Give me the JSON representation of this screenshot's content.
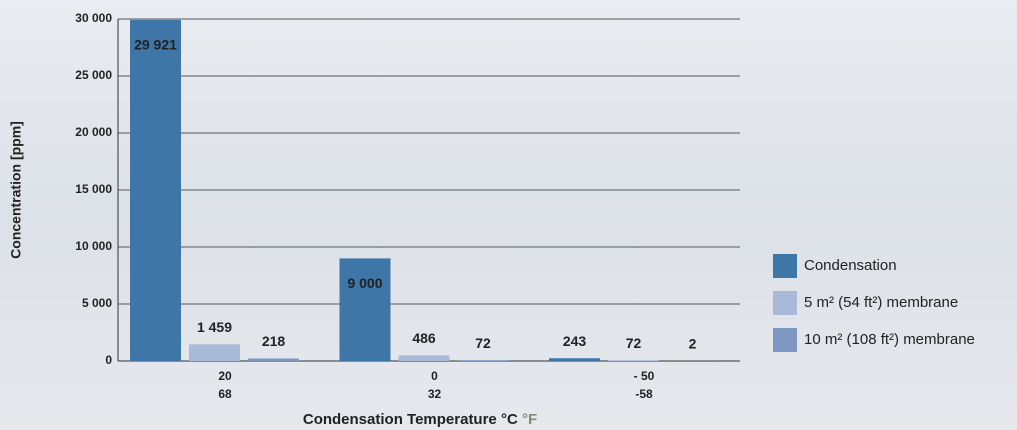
{
  "chart_data": {
    "type": "bar",
    "x_label": "Condensation Temperature °C",
    "x_label_secondary": "°F",
    "y_label": "Concentration [ppm]",
    "categories": [
      "20",
      "0",
      "- 50"
    ],
    "categories_secondary": [
      "68",
      "32",
      "-58"
    ],
    "series": [
      {
        "name": "Condensation",
        "color": "#3f76a8",
        "values": [
          29921,
          9000,
          243
        ],
        "value_labels": [
          "29 921",
          "9 000",
          "243"
        ]
      },
      {
        "name": "5 m² (54 ft²) membrane",
        "color": "#a9b9d8",
        "values": [
          1459,
          486,
          72
        ],
        "value_labels": [
          "1 459",
          "486",
          "72"
        ]
      },
      {
        "name": "10 m² (108 ft²) membrane",
        "color": "#7e98c4",
        "values": [
          218,
          72,
          2
        ],
        "value_labels": [
          "218",
          "72",
          "2"
        ]
      }
    ],
    "ylim": [
      0,
      30000
    ],
    "yticks": [
      0,
      {
        "value": 5000,
        "label": "5 000"
      },
      {
        "value": 10000,
        "label": "10 000"
      },
      {
        "value": 15000,
        "label": "15 000"
      },
      {
        "value": 20000,
        "label": "20 000"
      },
      {
        "value": 25000,
        "label": "25 000"
      },
      {
        "value": 30000,
        "label": "30 000"
      }
    ],
    "grid": true,
    "legend": "right"
  }
}
